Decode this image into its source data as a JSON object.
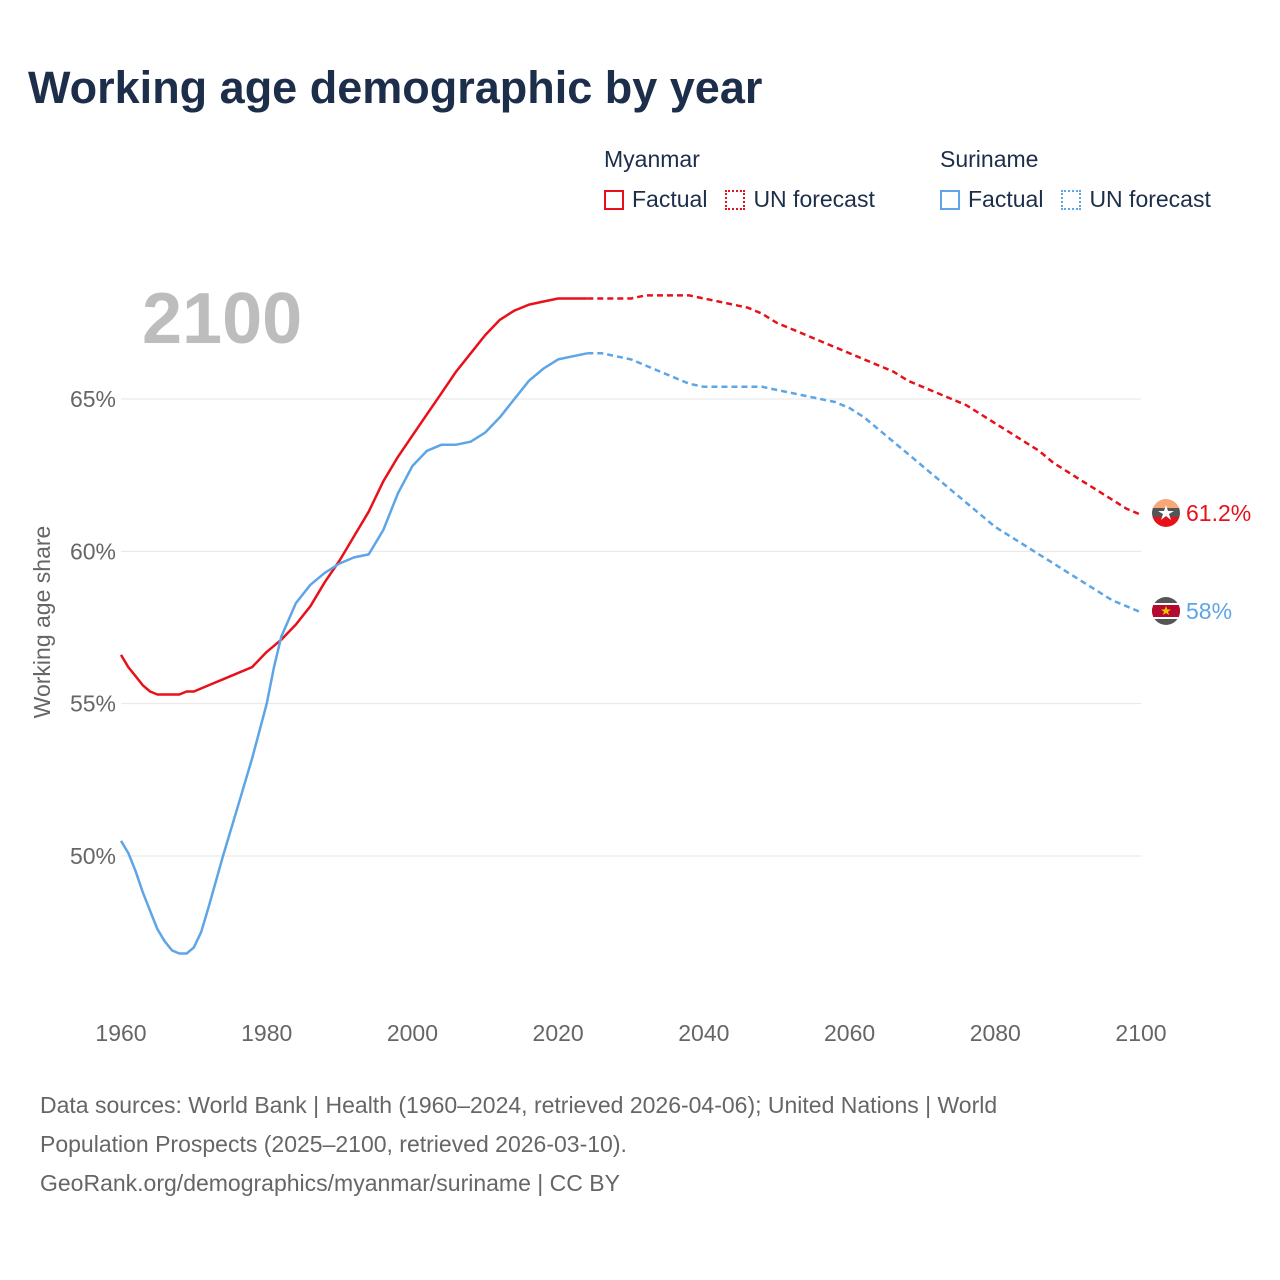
{
  "title": "Working age demographic by year",
  "year_overlay": "2100",
  "legend": [
    {
      "country": "Myanmar",
      "color": "#e8111b",
      "factual_label": "Factual",
      "forecast_label": "UN forecast"
    },
    {
      "country": "Suriname",
      "color": "#5da5e6",
      "factual_label": "Factual",
      "forecast_label": "UN forecast"
    }
  ],
  "footer": {
    "line1": "Data sources: World Bank | Health (1960–2024, retrieved 2026-04-06); United Nations | World",
    "line2": "Population Prospects (2025–2100, retrieved 2026-03-10).",
    "line3": "GeoRank.org/demographics/myanmar/suriname | CC BY"
  },
  "chart_data": {
    "type": "line",
    "title": "Working age demographic by year",
    "xlabel": "",
    "ylabel": "Working age share",
    "xlim": [
      1960,
      2100
    ],
    "ylim": [
      45,
      70
    ],
    "x_ticks": [
      1960,
      1980,
      2000,
      2020,
      2040,
      2060,
      2080,
      2100
    ],
    "y_ticks": [
      50,
      55,
      60,
      65
    ],
    "y_tick_labels": [
      "50%",
      "55%",
      "60%",
      "65%"
    ],
    "grid": true,
    "forecast_start": 2024,
    "series": [
      {
        "name": "Myanmar",
        "color": "#e8111b",
        "end_label": "61.2%",
        "flag_icon": "myanmar-flag-icon",
        "points": [
          [
            1960,
            56.6
          ],
          [
            1961,
            56.2
          ],
          [
            1962,
            55.9
          ],
          [
            1963,
            55.6
          ],
          [
            1964,
            55.4
          ],
          [
            1965,
            55.3
          ],
          [
            1966,
            55.3
          ],
          [
            1967,
            55.3
          ],
          [
            1968,
            55.3
          ],
          [
            1969,
            55.4
          ],
          [
            1970,
            55.4
          ],
          [
            1972,
            55.6
          ],
          [
            1974,
            55.8
          ],
          [
            1976,
            56.0
          ],
          [
            1978,
            56.2
          ],
          [
            1980,
            56.7
          ],
          [
            1982,
            57.1
          ],
          [
            1984,
            57.6
          ],
          [
            1986,
            58.2
          ],
          [
            1988,
            59.0
          ],
          [
            1990,
            59.7
          ],
          [
            1992,
            60.5
          ],
          [
            1994,
            61.3
          ],
          [
            1996,
            62.3
          ],
          [
            1998,
            63.1
          ],
          [
            2000,
            63.8
          ],
          [
            2002,
            64.5
          ],
          [
            2004,
            65.2
          ],
          [
            2006,
            65.9
          ],
          [
            2008,
            66.5
          ],
          [
            2010,
            67.1
          ],
          [
            2012,
            67.6
          ],
          [
            2014,
            67.9
          ],
          [
            2016,
            68.1
          ],
          [
            2018,
            68.2
          ],
          [
            2020,
            68.3
          ],
          [
            2022,
            68.3
          ],
          [
            2024,
            68.3
          ],
          [
            2026,
            68.3
          ],
          [
            2028,
            68.3
          ],
          [
            2030,
            68.3
          ],
          [
            2032,
            68.4
          ],
          [
            2034,
            68.4
          ],
          [
            2036,
            68.4
          ],
          [
            2038,
            68.4
          ],
          [
            2040,
            68.3
          ],
          [
            2042,
            68.2
          ],
          [
            2044,
            68.1
          ],
          [
            2046,
            68.0
          ],
          [
            2048,
            67.8
          ],
          [
            2050,
            67.5
          ],
          [
            2052,
            67.3
          ],
          [
            2054,
            67.1
          ],
          [
            2056,
            66.9
          ],
          [
            2058,
            66.7
          ],
          [
            2060,
            66.5
          ],
          [
            2062,
            66.3
          ],
          [
            2064,
            66.1
          ],
          [
            2066,
            65.9
          ],
          [
            2068,
            65.6
          ],
          [
            2070,
            65.4
          ],
          [
            2072,
            65.2
          ],
          [
            2074,
            65.0
          ],
          [
            2076,
            64.8
          ],
          [
            2078,
            64.5
          ],
          [
            2080,
            64.2
          ],
          [
            2082,
            63.9
          ],
          [
            2084,
            63.6
          ],
          [
            2086,
            63.3
          ],
          [
            2088,
            62.9
          ],
          [
            2090,
            62.6
          ],
          [
            2092,
            62.3
          ],
          [
            2094,
            62.0
          ],
          [
            2096,
            61.7
          ],
          [
            2098,
            61.4
          ],
          [
            2100,
            61.2
          ]
        ]
      },
      {
        "name": "Suriname",
        "color": "#5da5e6",
        "end_label": "58%",
        "flag_icon": "suriname-flag-icon",
        "points": [
          [
            1960,
            50.5
          ],
          [
            1961,
            50.1
          ],
          [
            1962,
            49.5
          ],
          [
            1963,
            48.8
          ],
          [
            1964,
            48.2
          ],
          [
            1965,
            47.6
          ],
          [
            1966,
            47.2
          ],
          [
            1967,
            46.9
          ],
          [
            1968,
            46.8
          ],
          [
            1969,
            46.8
          ],
          [
            1970,
            47.0
          ],
          [
            1971,
            47.5
          ],
          [
            1972,
            48.3
          ],
          [
            1974,
            50.0
          ],
          [
            1976,
            51.6
          ],
          [
            1978,
            53.2
          ],
          [
            1980,
            55.0
          ],
          [
            1981,
            56.2
          ],
          [
            1982,
            57.2
          ],
          [
            1984,
            58.3
          ],
          [
            1986,
            58.9
          ],
          [
            1988,
            59.3
          ],
          [
            1990,
            59.6
          ],
          [
            1992,
            59.8
          ],
          [
            1994,
            59.9
          ],
          [
            1996,
            60.7
          ],
          [
            1998,
            61.9
          ],
          [
            2000,
            62.8
          ],
          [
            2002,
            63.3
          ],
          [
            2004,
            63.5
          ],
          [
            2006,
            63.5
          ],
          [
            2008,
            63.6
          ],
          [
            2010,
            63.9
          ],
          [
            2012,
            64.4
          ],
          [
            2014,
            65.0
          ],
          [
            2016,
            65.6
          ],
          [
            2018,
            66.0
          ],
          [
            2020,
            66.3
          ],
          [
            2022,
            66.4
          ],
          [
            2024,
            66.5
          ],
          [
            2026,
            66.5
          ],
          [
            2028,
            66.4
          ],
          [
            2030,
            66.3
          ],
          [
            2032,
            66.1
          ],
          [
            2034,
            65.9
          ],
          [
            2036,
            65.7
          ],
          [
            2038,
            65.5
          ],
          [
            2040,
            65.4
          ],
          [
            2042,
            65.4
          ],
          [
            2044,
            65.4
          ],
          [
            2046,
            65.4
          ],
          [
            2048,
            65.4
          ],
          [
            2050,
            65.3
          ],
          [
            2052,
            65.2
          ],
          [
            2054,
            65.1
          ],
          [
            2056,
            65.0
          ],
          [
            2058,
            64.9
          ],
          [
            2060,
            64.7
          ],
          [
            2062,
            64.4
          ],
          [
            2064,
            64.0
          ],
          [
            2066,
            63.6
          ],
          [
            2068,
            63.2
          ],
          [
            2070,
            62.8
          ],
          [
            2072,
            62.4
          ],
          [
            2074,
            62.0
          ],
          [
            2076,
            61.6
          ],
          [
            2078,
            61.2
          ],
          [
            2080,
            60.8
          ],
          [
            2082,
            60.5
          ],
          [
            2084,
            60.2
          ],
          [
            2086,
            59.9
          ],
          [
            2088,
            59.6
          ],
          [
            2090,
            59.3
          ],
          [
            2092,
            59.0
          ],
          [
            2094,
            58.7
          ],
          [
            2096,
            58.4
          ],
          [
            2098,
            58.2
          ],
          [
            2100,
            58.0
          ]
        ]
      }
    ]
  }
}
